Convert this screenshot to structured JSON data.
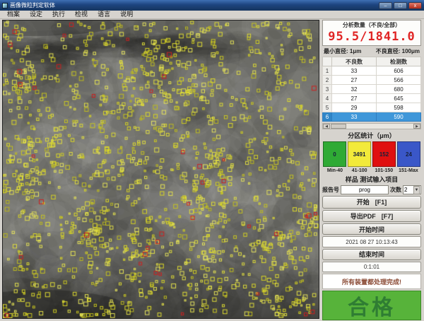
{
  "window": {
    "title": "画像微粒判定软体",
    "minimize": "–",
    "maximize": "□",
    "close": "x"
  },
  "menu": {
    "items": [
      "档案",
      "设定",
      "执行",
      "检视",
      "语言",
      "说明"
    ]
  },
  "image_view": {
    "background": "#70706a",
    "yellow_color": "#e6e63c",
    "red_color": "#cc2020",
    "yellow_count": 1400,
    "red_count": 42,
    "seed": 1234567
  },
  "panel": {
    "analysis": {
      "title": "分析数量（不良/全部）",
      "value": "95.5/1841.0",
      "min_dia": "最小直径: 1μm",
      "ng_dia": "不良直径: 100μm"
    },
    "table": {
      "headers": [
        "不良数",
        "检测数"
      ],
      "rows": [
        {
          "n": "1",
          "defects": "33",
          "detected": "606"
        },
        {
          "n": "2",
          "defects": "27",
          "detected": "566"
        },
        {
          "n": "3",
          "defects": "32",
          "detected": "680"
        },
        {
          "n": "4",
          "defects": "27",
          "detected": "645"
        },
        {
          "n": "5",
          "defects": "29",
          "detected": "598"
        },
        {
          "n": "6",
          "defects": "33",
          "detected": "590"
        }
      ],
      "selected_index": 5
    },
    "zones": {
      "title": "分区统计（μm）",
      "items": [
        {
          "name": "zone-green",
          "color": "#2faa35",
          "value": "0",
          "range": "Min-40"
        },
        {
          "name": "zone-yellow",
          "color": "#f2ea3a",
          "value": "3491",
          "range": "41-100"
        },
        {
          "name": "zone-red",
          "color": "#e01010",
          "value": "152",
          "range": "101-150"
        },
        {
          "name": "zone-blue",
          "color": "#3a57c8",
          "value": "24",
          "range": "151-Max"
        }
      ]
    },
    "sample": {
      "title": "样品 测试输入项目",
      "report_label": "报告号",
      "report_value": "prog",
      "times_label": "次数",
      "times_value": "2"
    },
    "buttons": {
      "start_label": "开始",
      "start_key": "[F1]",
      "pdf_label": "导出PDF",
      "pdf_key": "[F7]"
    },
    "times": {
      "start_label": "开始时间",
      "start_value": "2021 08 27 10:13:43",
      "end_label": "结束时间",
      "end_value": "0:1:01"
    },
    "status": {
      "message": "所有装置都处理完成!",
      "result": "合格"
    }
  }
}
